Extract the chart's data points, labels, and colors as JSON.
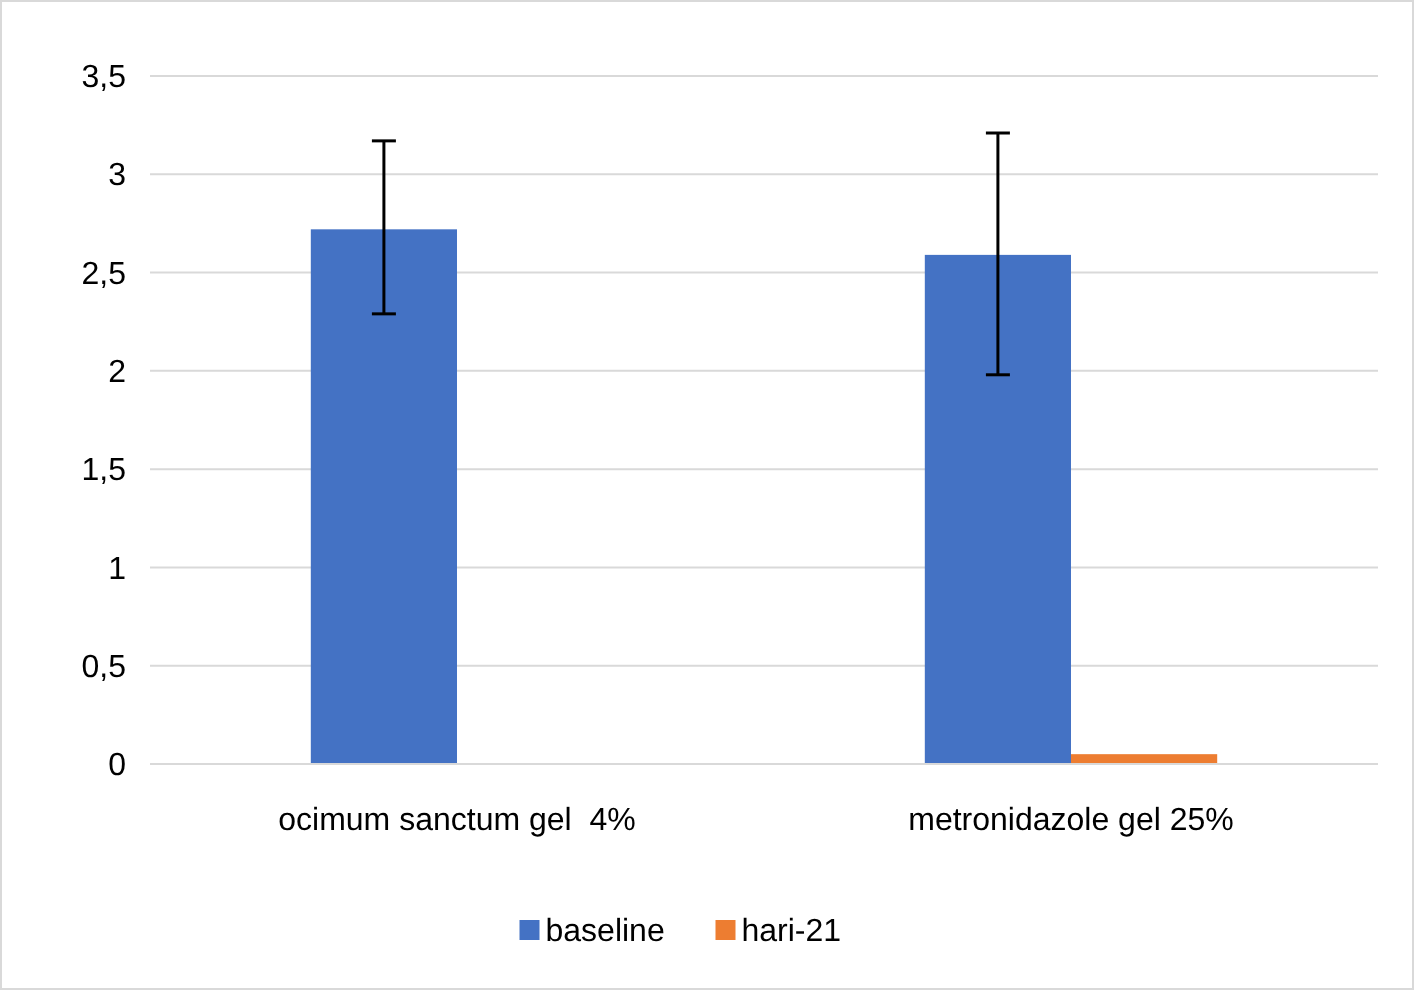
{
  "chart_data": {
    "type": "bar",
    "categories": [
      "ocimum sanctum gel  4%",
      "metronidazole gel 25%"
    ],
    "series": [
      {
        "name": "baseline",
        "color": "#4472c4",
        "values": [
          2.72,
          2.59
        ],
        "errors": [
          [
            2.29,
            3.17
          ],
          [
            1.98,
            3.21
          ]
        ]
      },
      {
        "name": "hari-21",
        "color": "#ed7d31",
        "values": [
          0,
          0.05
        ]
      }
    ],
    "ylim": [
      0,
      3.5
    ],
    "yticks": [
      {
        "value": 0,
        "label": "0"
      },
      {
        "value": 0.5,
        "label": "0,5"
      },
      {
        "value": 1,
        "label": "1"
      },
      {
        "value": 1.5,
        "label": "1,5"
      },
      {
        "value": 2,
        "label": "2"
      },
      {
        "value": 2.5,
        "label": "2,5"
      },
      {
        "value": 3,
        "label": "3"
      },
      {
        "value": 3.5,
        "label": "3,5"
      }
    ],
    "grid": "y",
    "legend": "bottom"
  }
}
